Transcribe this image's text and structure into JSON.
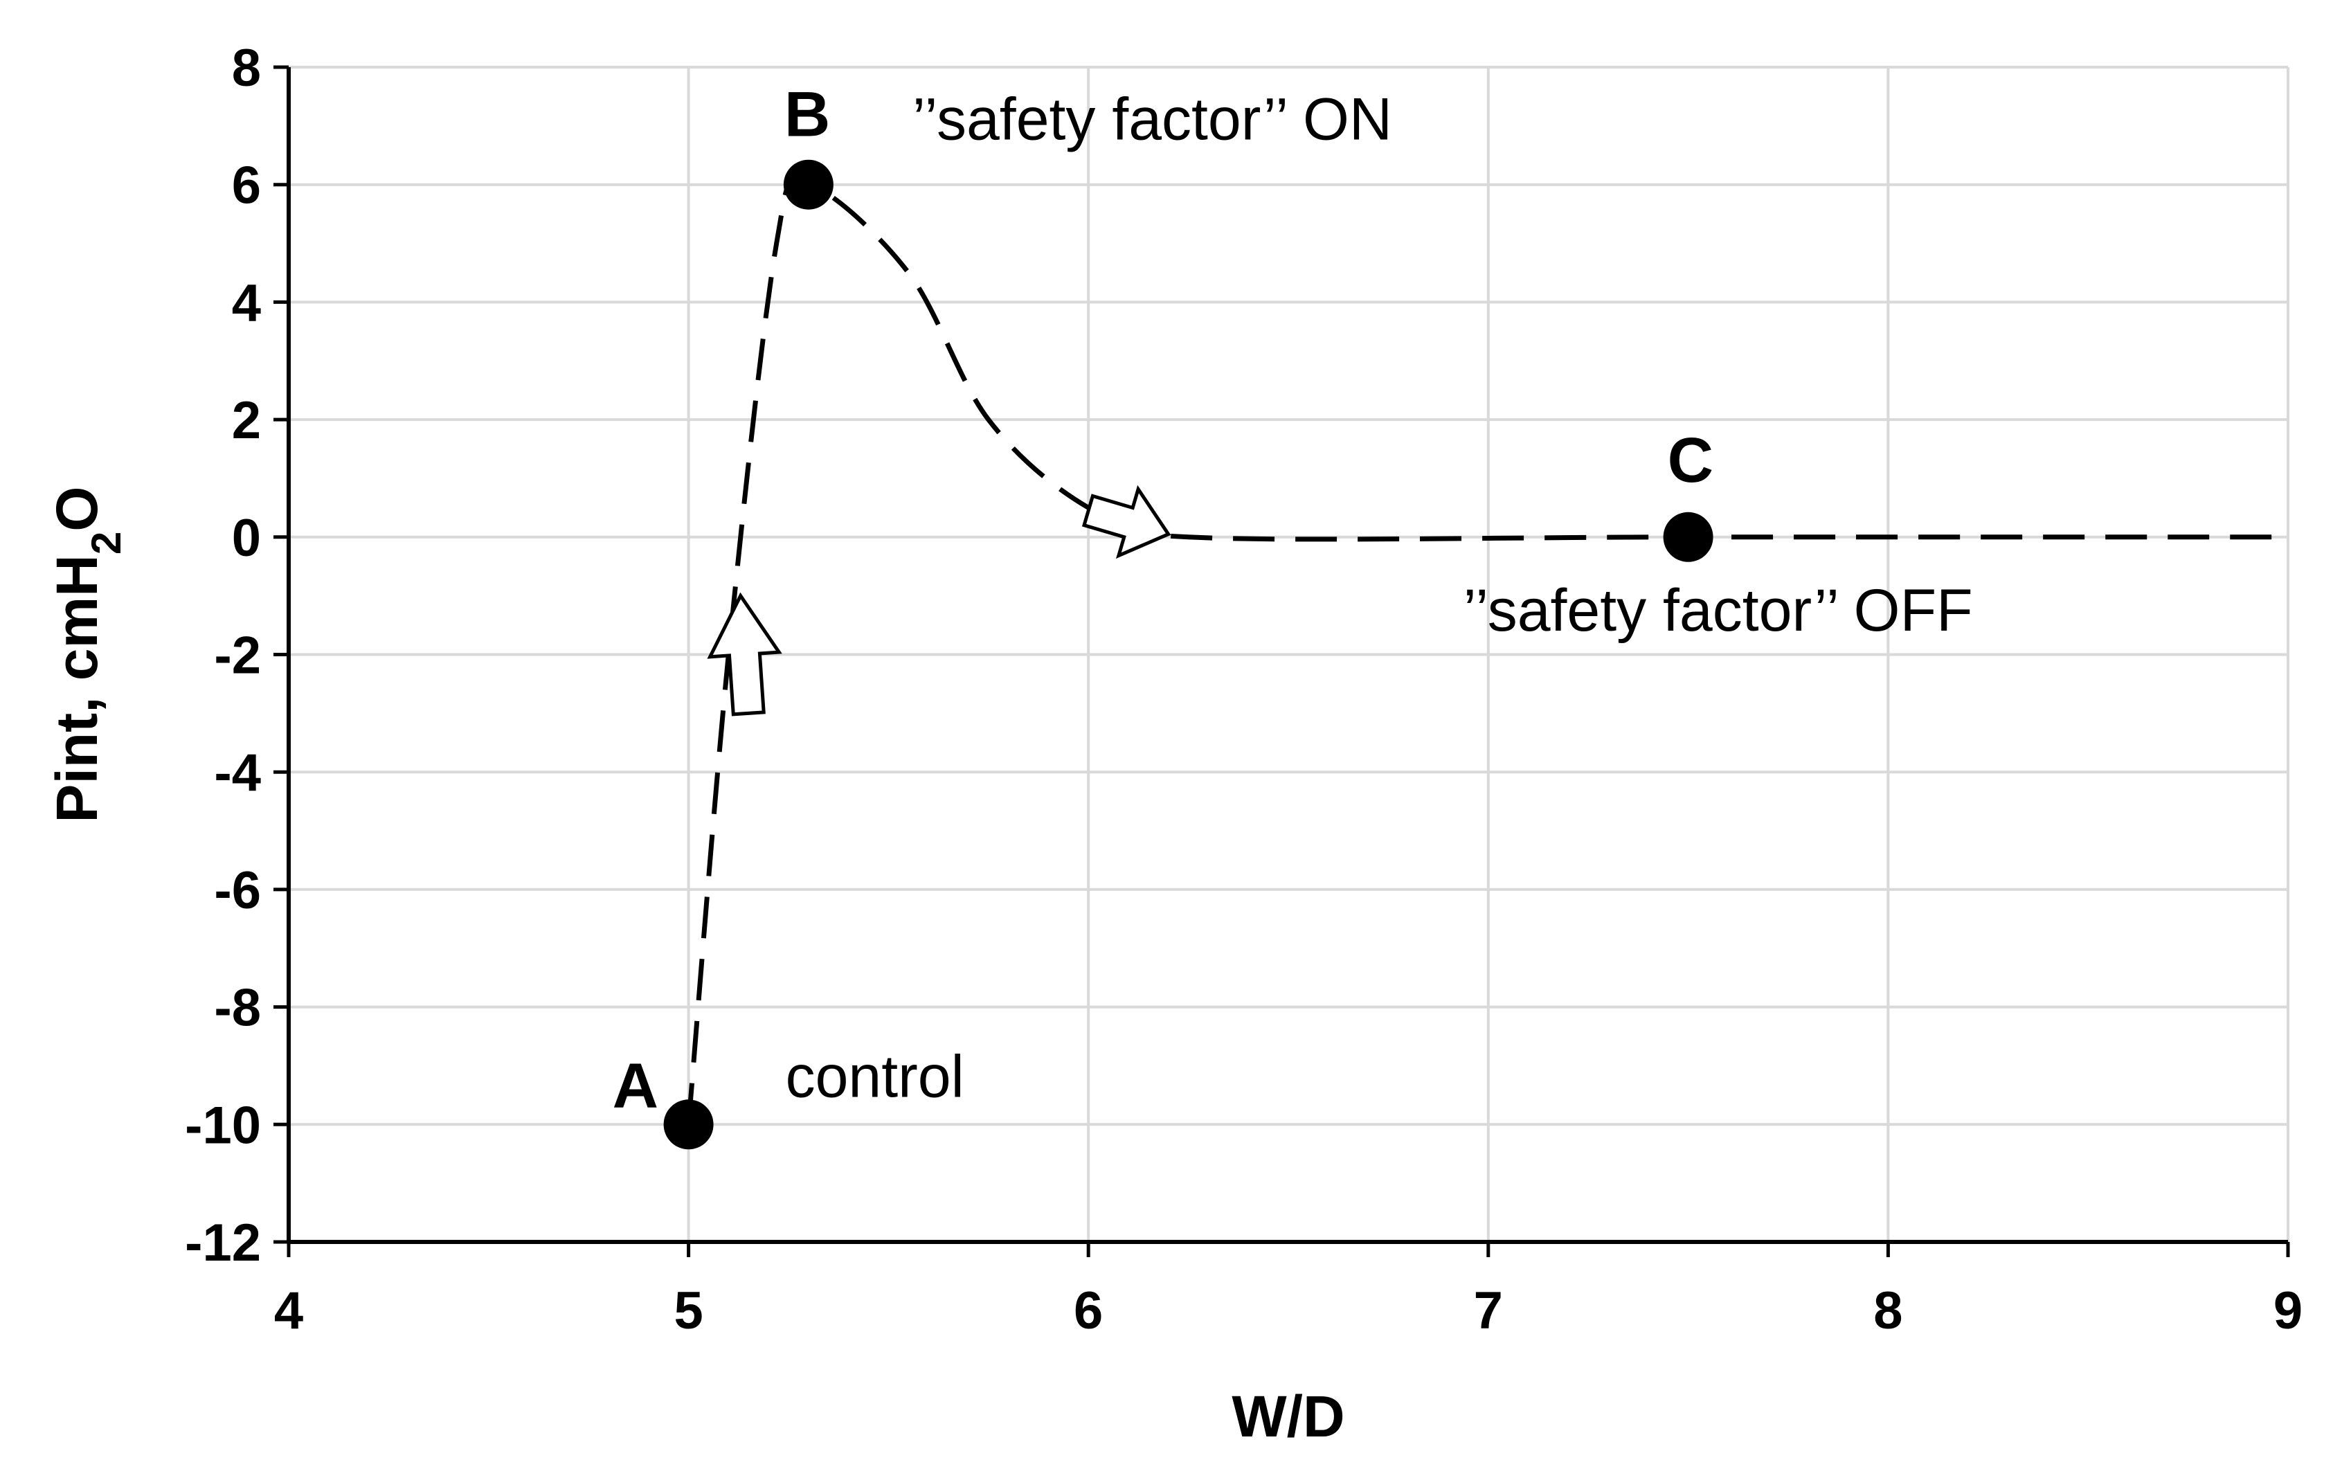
{
  "chart_data": {
    "type": "line",
    "xlabel": "W/D",
    "ylabel": {
      "prefix": "Pint,  cmH",
      "subscript": "2",
      "suffix": "O"
    },
    "xlim": [
      4,
      9
    ],
    "ylim": [
      -12,
      8
    ],
    "x_ticks": [
      4,
      5,
      6,
      7,
      8,
      9
    ],
    "x_tick_labels": [
      "4",
      "5",
      "6",
      "7",
      "8",
      "9"
    ],
    "y_ticks": [
      8,
      6,
      4,
      2,
      0,
      -2,
      -4,
      -6,
      -8,
      -10,
      -12
    ],
    "y_tick_labels": [
      "8",
      "6",
      "4",
      "2",
      "0",
      "-2",
      "-4",
      "-6",
      "-8",
      "-10",
      "-12"
    ],
    "grid": true,
    "line_style": "dashed",
    "curve": [
      {
        "x": 5.0,
        "y": -10
      },
      {
        "x": 5.1,
        "y": -2
      },
      {
        "x": 5.22,
        "y": 5.0
      },
      {
        "x": 5.3,
        "y": 6.0
      },
      {
        "x": 5.55,
        "y": 4.5
      },
      {
        "x": 5.75,
        "y": 2.0
      },
      {
        "x": 6.0,
        "y": 0.5
      },
      {
        "x": 6.25,
        "y": 0.0
      },
      {
        "x": 7.5,
        "y": 0.0
      },
      {
        "x": 9.0,
        "y": 0.0
      }
    ],
    "points": [
      {
        "label": "A",
        "x": 5.0,
        "y": -10,
        "annotation": "control"
      },
      {
        "label": "B",
        "x": 5.3,
        "y": 6,
        "annotation": "’’safety factor’’ ON"
      },
      {
        "label": "C",
        "x": 7.5,
        "y": 0,
        "annotation": "’’safety factor’’ OFF"
      }
    ],
    "arrows": [
      {
        "from": {
          "x": 5.15,
          "y": -3
        },
        "to": {
          "x": 5.13,
          "y": -1
        }
      },
      {
        "from": {
          "x": 6.0,
          "y": 0.45
        },
        "to": {
          "x": 6.2,
          "y": 0.05
        }
      }
    ],
    "colors": {
      "line": "#000000",
      "grid": "#d9d9d9",
      "axis": "#000000",
      "marker": "#000000",
      "arrow_fill": "#ffffff"
    }
  }
}
